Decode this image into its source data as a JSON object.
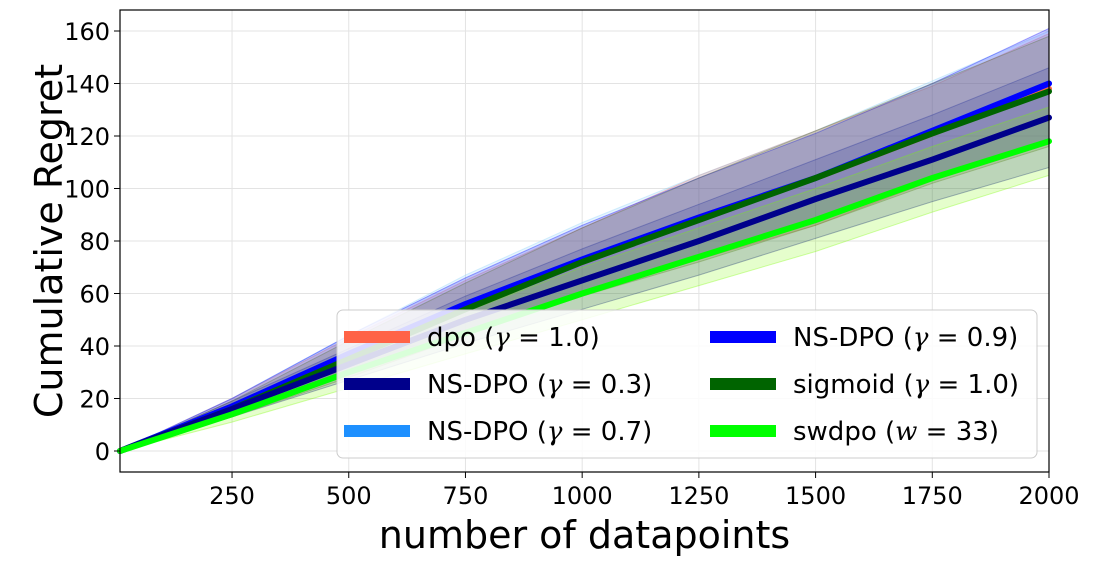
{
  "chart_data": {
    "type": "line",
    "title": "",
    "xlabel": "number of datapoints",
    "ylabel": "Cumulative Regret",
    "xlim": [
      10,
      2000
    ],
    "ylim": [
      -8,
      168
    ],
    "xticks": [
      250,
      500,
      750,
      1000,
      1250,
      1500,
      1750,
      2000
    ],
    "yticks": [
      0,
      20,
      40,
      60,
      80,
      100,
      120,
      140,
      160
    ],
    "grid": true,
    "legend_placement": "lower-right",
    "legend_columns": 2,
    "x": [
      10,
      250,
      500,
      750,
      1000,
      1250,
      1500,
      1750,
      2000
    ],
    "series": [
      {
        "name": "dpo",
        "param_symbol": "γ",
        "param_value": "1.0",
        "color": "#ff6347",
        "band_color": "#ff6347",
        "values": [
          0,
          17,
          36,
          55,
          72,
          89,
          104,
          121,
          138
        ],
        "lower": [
          0,
          14,
          29,
          45,
          59,
          73,
          86,
          103,
          117
        ],
        "upper": [
          0,
          20,
          43,
          65,
          85,
          105,
          122,
          139,
          159
        ]
      },
      {
        "name": "NS-DPO",
        "param_symbol": "γ",
        "param_value": "0.3",
        "color": "#00008b",
        "band_color": "#00008b",
        "values": [
          0,
          16,
          33,
          50,
          65,
          80,
          96,
          111,
          127
        ],
        "lower": [
          0,
          13,
          27,
          41,
          54,
          67,
          81,
          95,
          108
        ],
        "upper": [
          0,
          19,
          39,
          59,
          77,
          94,
          111,
          128,
          146
        ]
      },
      {
        "name": "NS-DPO",
        "param_symbol": "γ",
        "param_value": "0.7",
        "color": "#1e90ff",
        "band_color": "#87cefa",
        "values": [
          0,
          17,
          37,
          56,
          73,
          89,
          104,
          122,
          140
        ],
        "lower": [
          0,
          14,
          30,
          46,
          60,
          74,
          87,
          104,
          119
        ],
        "upper": [
          0,
          20,
          44,
          67,
          87,
          105,
          122,
          141,
          160
        ]
      },
      {
        "name": "NS-DPO",
        "param_symbol": "γ",
        "param_value": "0.9",
        "color": "#0000ff",
        "band_color": "#0000ff",
        "values": [
          0,
          17,
          37,
          56,
          73,
          89,
          104,
          122,
          140
        ],
        "lower": [
          0,
          14,
          30,
          46,
          60,
          74,
          87,
          104,
          119
        ],
        "upper": [
          0,
          20,
          44,
          66,
          86,
          104,
          121,
          140,
          161
        ]
      },
      {
        "name": "sigmoid",
        "param_symbol": "γ",
        "param_value": "1.0",
        "color": "#006400",
        "band_color": "#556b2f",
        "values": [
          0,
          16,
          35,
          54,
          72,
          88,
          104,
          121,
          137
        ],
        "lower": [
          0,
          13,
          28,
          44,
          59,
          72,
          86,
          102,
          116
        ],
        "upper": [
          0,
          19,
          42,
          64,
          85,
          104,
          122,
          140,
          158
        ]
      },
      {
        "name": "swdpo",
        "param_symbol": "w",
        "param_value": "33",
        "color": "#00ff00",
        "band_color": "#7cfc00",
        "values": [
          0,
          14,
          30,
          45,
          60,
          74,
          88,
          104,
          118
        ],
        "lower": [
          0,
          11,
          24,
          37,
          50,
          63,
          76,
          91,
          105
        ],
        "upper": [
          0,
          17,
          36,
          53,
          70,
          85,
          100,
          116,
          131
        ]
      }
    ]
  }
}
